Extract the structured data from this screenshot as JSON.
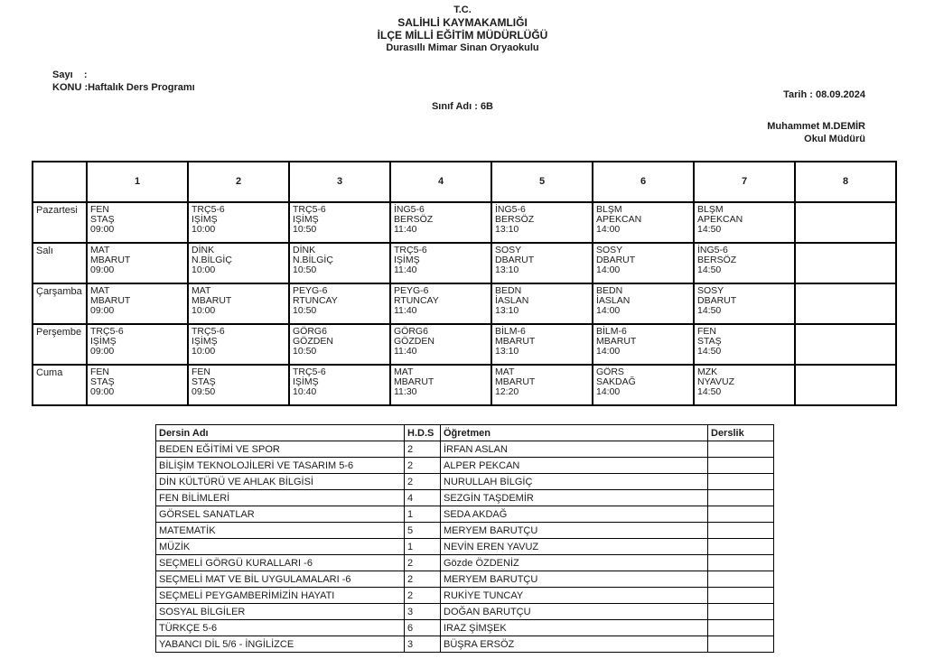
{
  "header": {
    "line1": "T.C.",
    "line2": "SALİHLİ KAYMAKAMLIĞI",
    "line3": "İLÇE MİLLİ EĞİTİM MÜDÜRLÜĞÜ",
    "line4": "Durasıllı Mimar Sinan Oryaokulu"
  },
  "meta": {
    "sayi_line": "Sayı    :",
    "konu_line": "KONU :Haftalık Ders Programı",
    "tarih": "Tarih : 08.09.2024",
    "sinif": "Sınıf Adı : 6B",
    "principal_name": "Muhammet M.DEMİR",
    "principal_title": "Okul Müdürü"
  },
  "timetable": {
    "period_headers": [
      "",
      "1",
      "2",
      "3",
      "4",
      "5",
      "6",
      "7",
      "8"
    ],
    "rows": [
      {
        "day": "Pazartesi",
        "lessons": [
          {
            "course": "FEN",
            "teacher": "STAŞ",
            "time": "09:00"
          },
          {
            "course": "TRÇ5-6",
            "teacher": "IŞİMŞ",
            "time": "10:00"
          },
          {
            "course": "TRÇ5-6",
            "teacher": "IŞİMŞ",
            "time": "10:50"
          },
          {
            "course": "İNG5-6",
            "teacher": "BERSÖZ",
            "time": "11:40"
          },
          {
            "course": "İNG5-6",
            "teacher": "BERSÖZ",
            "time": "13:10"
          },
          {
            "course": "BLŞM",
            "teacher": "APEKCAN",
            "time": "14:00"
          },
          {
            "course": "BLŞM",
            "teacher": "APEKCAN",
            "time": "14:50"
          },
          null
        ]
      },
      {
        "day": "Salı",
        "lessons": [
          {
            "course": "MAT",
            "teacher": "MBARUT",
            "time": "09:00"
          },
          {
            "course": "DİNK",
            "teacher": "N.BİLGİÇ",
            "time": "10:00"
          },
          {
            "course": "DİNK",
            "teacher": "N.BİLGİÇ",
            "time": "10:50"
          },
          {
            "course": "TRÇ5-6",
            "teacher": "IŞİMŞ",
            "time": "11:40"
          },
          {
            "course": "SOSY",
            "teacher": "DBARUT",
            "time": "13:10"
          },
          {
            "course": "SOSY",
            "teacher": "DBARUT",
            "time": "14:00"
          },
          {
            "course": "İNG5-6",
            "teacher": "BERSÖZ",
            "time": "14:50"
          },
          null
        ]
      },
      {
        "day": "Çarşamba",
        "lessons": [
          {
            "course": "MAT",
            "teacher": "MBARUT",
            "time": "09:00"
          },
          {
            "course": "MAT",
            "teacher": "MBARUT",
            "time": "10:00"
          },
          {
            "course": "PEYG-6",
            "teacher": "RTUNCAY",
            "time": "10:50"
          },
          {
            "course": "PEYG-6",
            "teacher": "RTUNCAY",
            "time": "11:40"
          },
          {
            "course": "BEDN",
            "teacher": "İASLAN",
            "time": "13:10"
          },
          {
            "course": "BEDN",
            "teacher": "İASLAN",
            "time": "14:00"
          },
          {
            "course": "SOSY",
            "teacher": "DBARUT",
            "time": "14:50"
          },
          null
        ]
      },
      {
        "day": "Perşembe",
        "lessons": [
          {
            "course": "TRÇ5-6",
            "teacher": "IŞİMŞ",
            "time": "09:00"
          },
          {
            "course": "TRÇ5-6",
            "teacher": "IŞİMŞ",
            "time": "10:00"
          },
          {
            "course": "GÖRG6",
            "teacher": "GÖZDEN",
            "time": "10:50"
          },
          {
            "course": "GÖRG6",
            "teacher": "GÖZDEN",
            "time": "11:40"
          },
          {
            "course": "BİLM-6",
            "teacher": "MBARUT",
            "time": "13:10"
          },
          {
            "course": "BİLM-6",
            "teacher": "MBARUT",
            "time": "14:00"
          },
          {
            "course": "FEN",
            "teacher": "STAŞ",
            "time": "14:50"
          },
          null
        ]
      },
      {
        "day": "Cuma",
        "lessons": [
          {
            "course": "FEN",
            "teacher": "STAŞ",
            "time": "09:00"
          },
          {
            "course": "FEN",
            "teacher": "STAŞ",
            "time": "09:50"
          },
          {
            "course": "TRÇ5-6",
            "teacher": "IŞİMŞ",
            "time": "10:40"
          },
          {
            "course": "MAT",
            "teacher": "MBARUT",
            "time": "11:30"
          },
          {
            "course": "MAT",
            "teacher": "MBARUT",
            "time": "12:20"
          },
          {
            "course": "GÖRS",
            "teacher": "SAKDAĞ",
            "time": "14:00"
          },
          {
            "course": "MZK",
            "teacher": "NYAVUZ",
            "time": "14:50"
          },
          null
        ]
      }
    ]
  },
  "lessons_table": {
    "headers": [
      "Dersin Adı",
      "H.D.S",
      "Öğretmen",
      "Derslik"
    ],
    "rows": [
      {
        "name": "BEDEN EĞİTİMİ VE SPOR",
        "hds": "2",
        "teacher": "İRFAN ASLAN",
        "derslik": ""
      },
      {
        "name": "BİLİŞİM TEKNOLOJİLERİ VE TASARIM 5-6",
        "hds": "2",
        "teacher": "ALPER PEKCAN",
        "derslik": ""
      },
      {
        "name": "DİN KÜLTÜRÜ VE AHLAK BİLGİSİ",
        "hds": "2",
        "teacher": "NURULLAH BİLGİÇ",
        "derslik": ""
      },
      {
        "name": "FEN BİLİMLERİ",
        "hds": "4",
        "teacher": "SEZGİN TAŞDEMİR",
        "derslik": ""
      },
      {
        "name": "GÖRSEL SANATLAR",
        "hds": "1",
        "teacher": "SEDA AKDAĞ",
        "derslik": ""
      },
      {
        "name": "MATEMATİK",
        "hds": "5",
        "teacher": "MERYEM BARUTÇU",
        "derslik": ""
      },
      {
        "name": "MÜZİK",
        "hds": "1",
        "teacher": "NEVİN EREN YAVUZ",
        "derslik": ""
      },
      {
        "name": "SEÇMELİ GÖRGÜ KURALLARI -6",
        "hds": "2",
        "teacher": "Gözde ÖZDENİZ",
        "derslik": ""
      },
      {
        "name": "SEÇMELİ MAT VE BİL UYGULAMALARI -6",
        "hds": "2",
        "teacher": "MERYEM BARUTÇU",
        "derslik": ""
      },
      {
        "name": "SEÇMELİ PEYGAMBERİMİZİN HAYATI",
        "hds": "2",
        "teacher": "RUKİYE TUNCAY",
        "derslik": ""
      },
      {
        "name": "SOSYAL BİLGİLER",
        "hds": "3",
        "teacher": "DOĞAN BARUTÇU",
        "derslik": ""
      },
      {
        "name": "TÜRKÇE 5-6",
        "hds": "6",
        "teacher": "IRAZ ŞİMŞEK",
        "derslik": ""
      },
      {
        "name": "YABANCI DİL 5/6 - İNGİLİZCE",
        "hds": "3",
        "teacher": "BÜŞRA ERSÖZ",
        "derslik": ""
      }
    ]
  }
}
